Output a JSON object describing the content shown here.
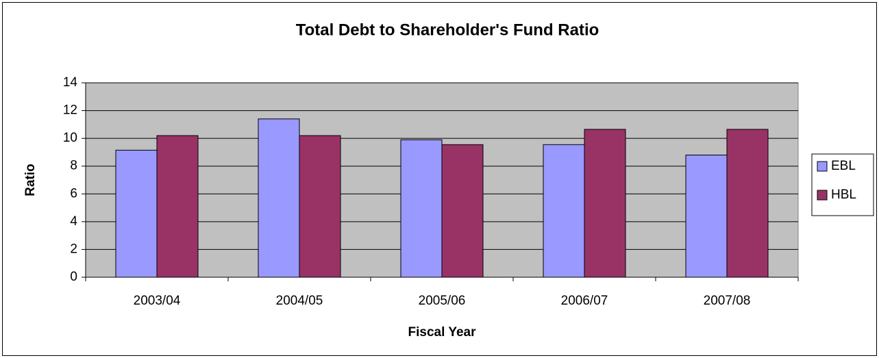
{
  "chart_data": {
    "type": "bar",
    "title": "Total Debt to Shareholder's Fund Ratio",
    "x_label": "Fiscal Year",
    "y_label": "Ratio",
    "categories": [
      "2003/04",
      "2004/05",
      "2005/06",
      "2006/07",
      "2007/08"
    ],
    "series": [
      {
        "name": "EBL",
        "color": "#9999ff",
        "values": [
          9.15,
          11.4,
          9.9,
          9.55,
          8.8
        ]
      },
      {
        "name": "HBL",
        "color": "#993366",
        "values": [
          10.2,
          10.2,
          9.55,
          10.65,
          10.65
        ]
      }
    ],
    "ylim": [
      0,
      14
    ],
    "yticks": [
      0,
      2,
      4,
      6,
      8,
      10,
      12,
      14
    ],
    "grid": true,
    "plot_background": "#c0c0c0",
    "legend": "right"
  }
}
